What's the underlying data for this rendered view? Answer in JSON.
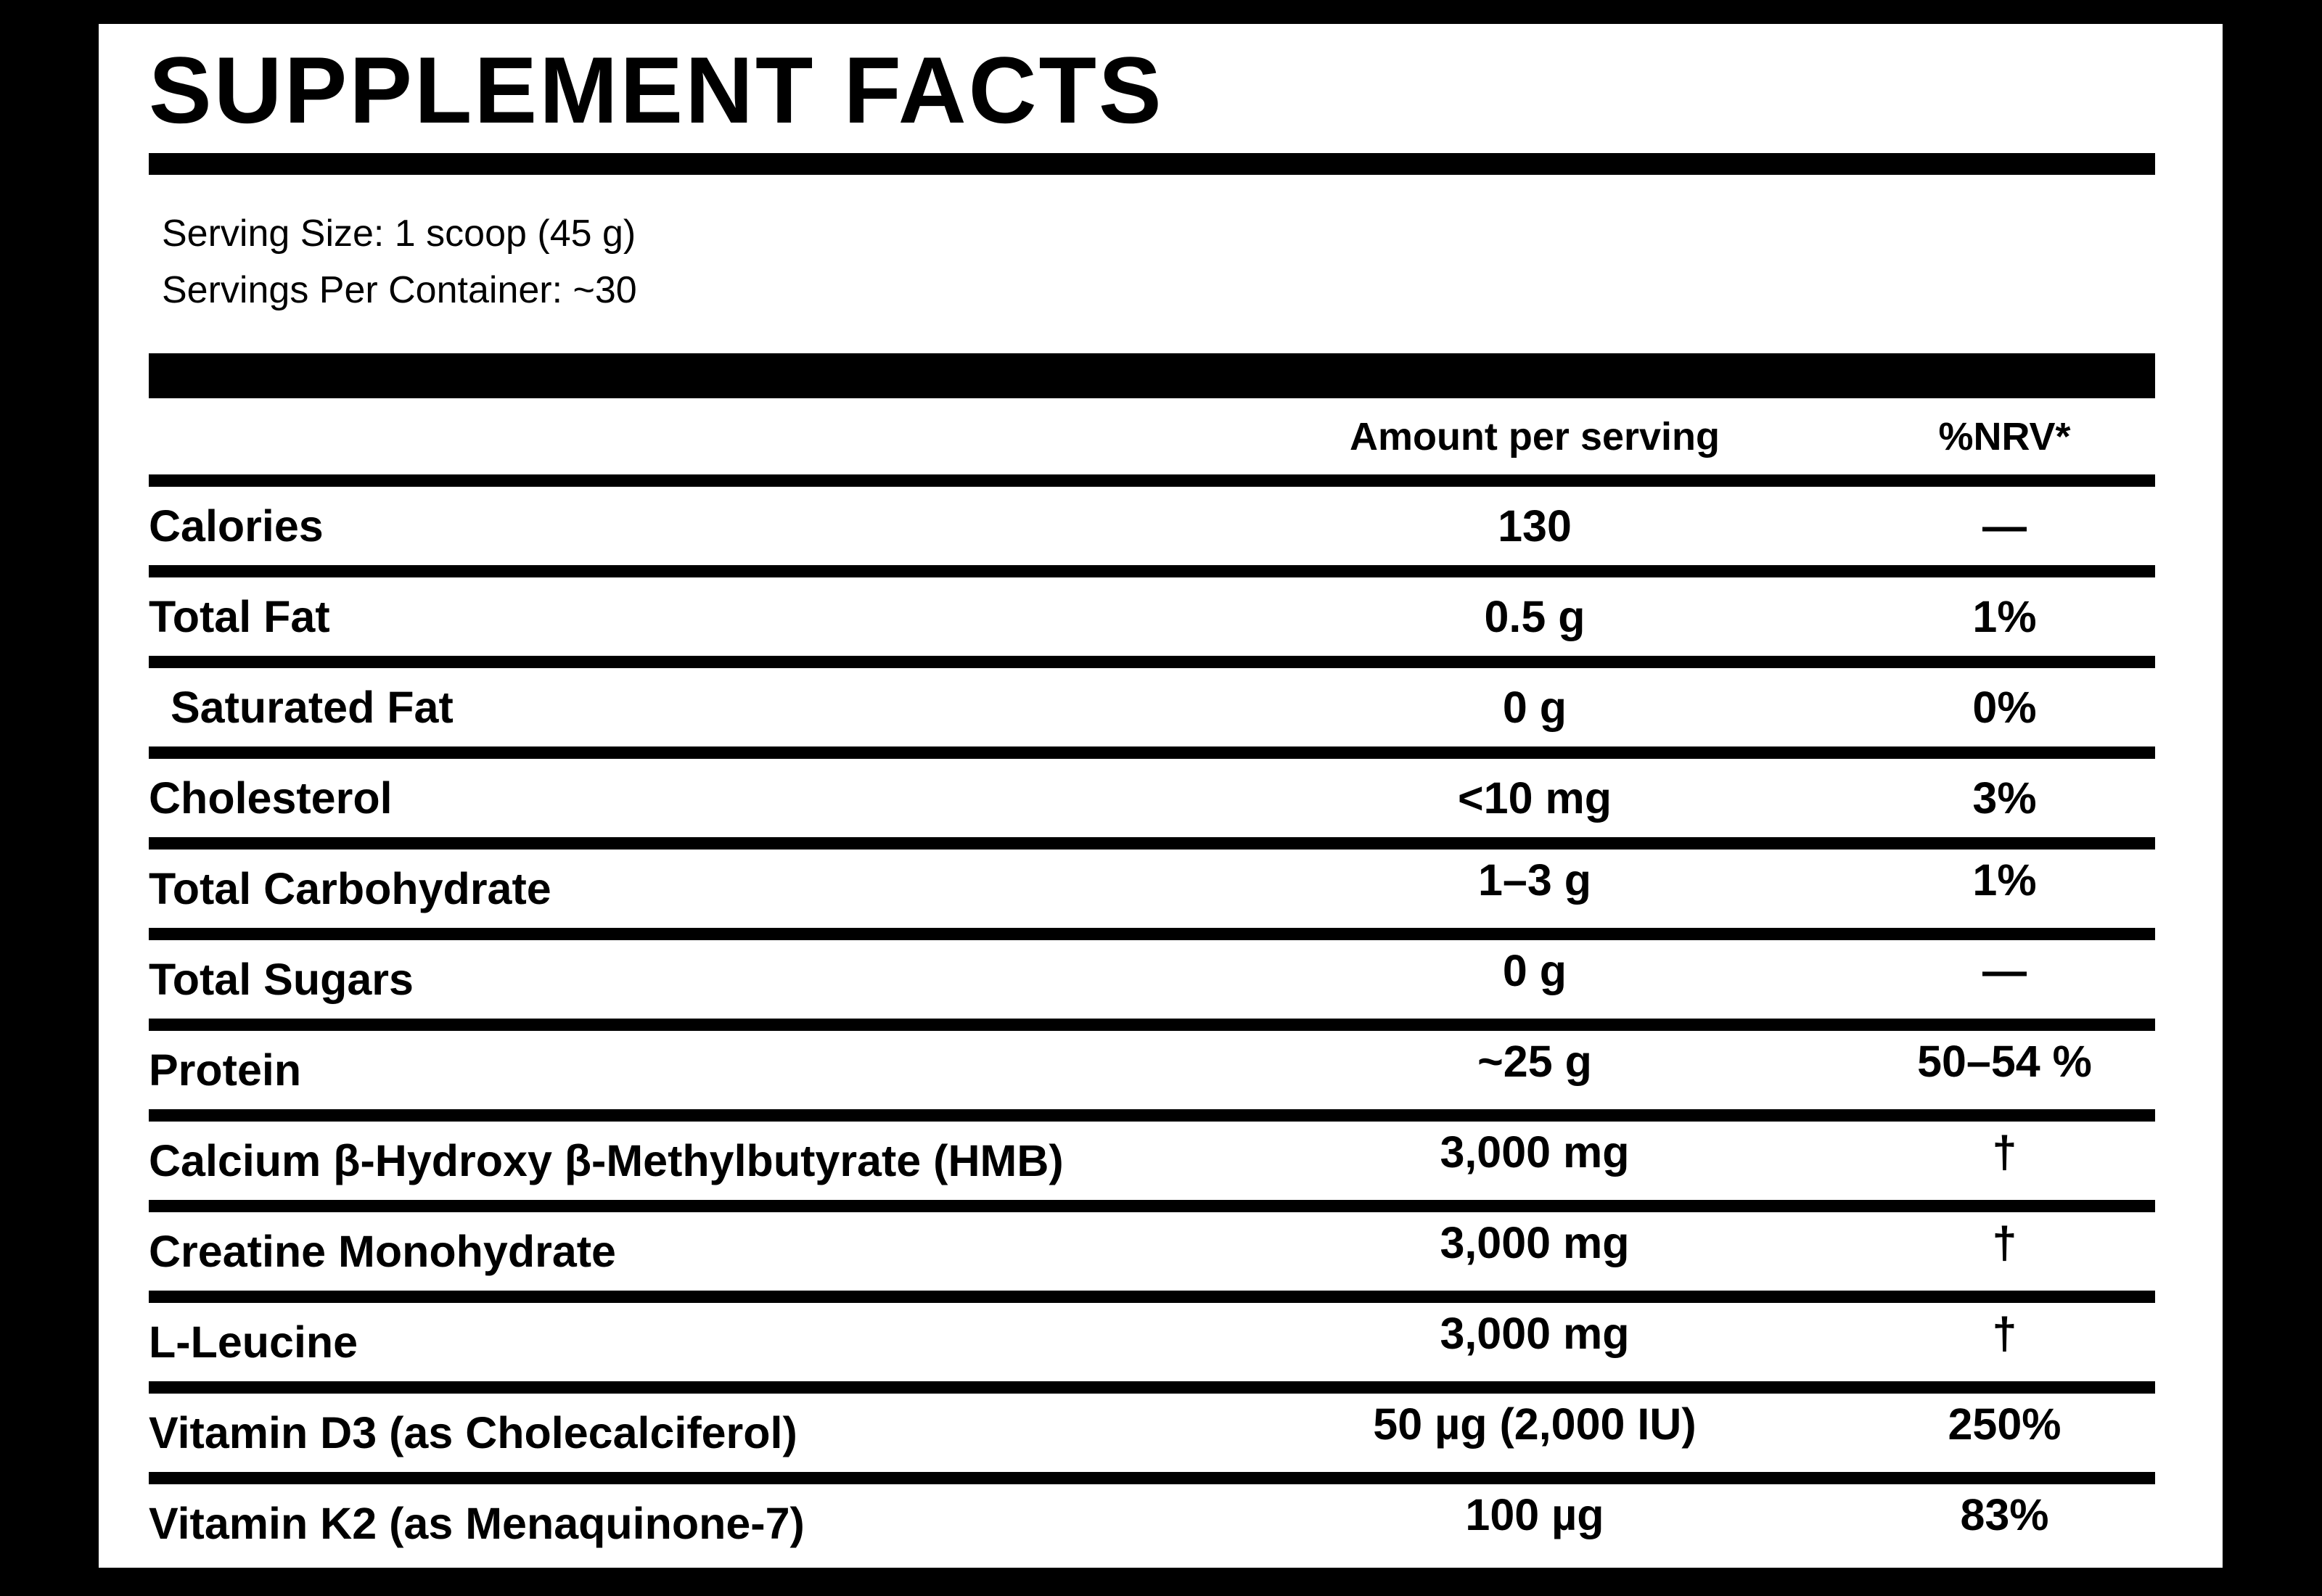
{
  "title": "SUPPLEMENT FACTS",
  "serving": {
    "size_label": "Serving Size: 1 scoop (45 g)",
    "per_container_label": "Servings Per Container: ~30"
  },
  "table": {
    "columns": [
      "",
      "Amount per serving",
      "%NRV*"
    ],
    "rows": [
      {
        "name": "Calories",
        "amount": "130",
        "nrv": "—",
        "indent": false
      },
      {
        "name": "Total Fat",
        "amount": "0.5 g",
        "nrv": "1%",
        "indent": false
      },
      {
        "name": "Saturated Fat",
        "amount": "0 g",
        "nrv": "0%",
        "indent": true
      },
      {
        "name": "Cholesterol",
        "amount": "<10 mg",
        "nrv": "3%",
        "indent": false
      },
      {
        "name": "Total Carbohydrate",
        "amount": "1–3 g",
        "nrv": "1%",
        "indent": false
      },
      {
        "name": "Total Sugars",
        "amount": "0 g",
        "nrv": "—",
        "indent": false
      },
      {
        "name": "Protein",
        "amount": "~25 g",
        "nrv": "50–54 %",
        "indent": false
      },
      {
        "name": "Calcium β-Hydroxy β-Methylbutyrate (HMB)",
        "amount": "3,000 mg",
        "nrv": "†",
        "indent": false
      },
      {
        "name": "Creatine Monohydrate",
        "amount": "3,000 mg",
        "nrv": "†",
        "indent": false
      },
      {
        "name": "L-Leucine",
        "amount": "3,000 mg",
        "nrv": "†",
        "indent": false
      },
      {
        "name": "Vitamin D3 (as Cholecalciferol)",
        "amount": "50 µg (2,000 IU)",
        "nrv": "250%",
        "indent": false
      },
      {
        "name": "Vitamin K2 (as Menaquinone-7)",
        "amount": "100 µg",
        "nrv": "83%",
        "indent": false
      }
    ]
  },
  "colors": {
    "background": "#000000",
    "card": "#ffffff",
    "text": "#000000"
  }
}
